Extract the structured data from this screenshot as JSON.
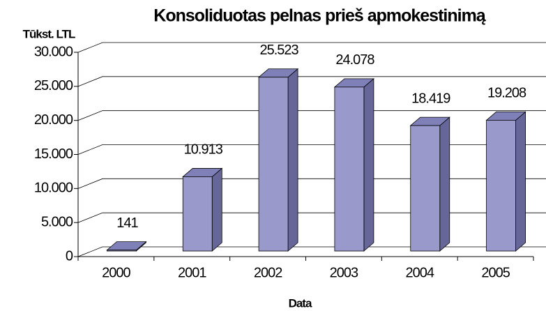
{
  "chart_data": {
    "type": "bar3d",
    "title": "Konsoliduotas pelnas prieš apmokestinimą",
    "y_label": "Tūkst. LTL",
    "x_label": "Data",
    "categories": [
      "2000",
      "2001",
      "2002",
      "2003",
      "2004",
      "2005"
    ],
    "values": [
      141,
      10913,
      25523,
      24078,
      18419,
      19208
    ],
    "value_labels": [
      "141",
      "10.913",
      "25.523",
      "24.078",
      "18.419",
      "19.208"
    ],
    "color": "#9999cc",
    "ylim": [
      0,
      30000
    ],
    "yticks": [
      0,
      {
        "value": 5000,
        "label": "5.000"
      },
      {
        "value": 10000,
        "label": "10.000"
      },
      {
        "value": 15000,
        "label": "15.000"
      },
      {
        "value": 20000,
        "label": "20.000"
      },
      {
        "value": 25000,
        "label": "25.000"
      },
      {
        "value": 30000,
        "label": "30.000"
      }
    ],
    "grid": true
  }
}
